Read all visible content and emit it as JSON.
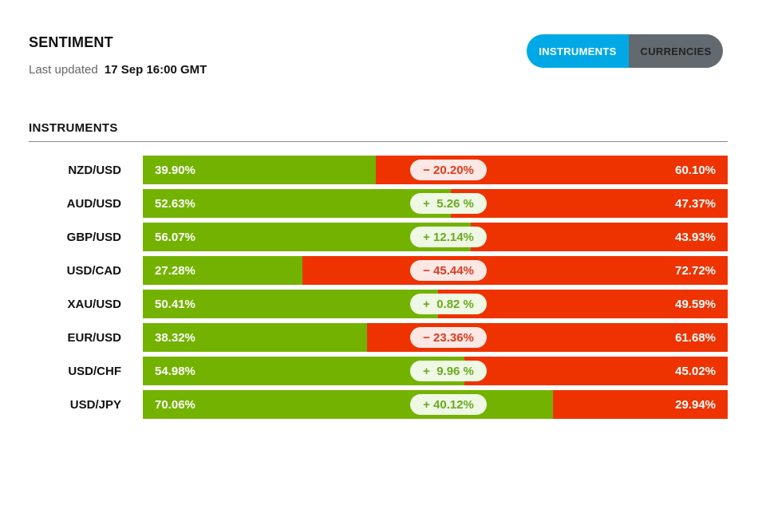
{
  "header": {
    "title": "SENTIMENT",
    "updated_label": "Last updated",
    "updated_time": "17 Sep 16:00 GMT"
  },
  "toggle": {
    "instruments_label": "INSTRUMENTS",
    "currencies_label": "CURRENCIES",
    "active": "INSTRUMENTS"
  },
  "section": {
    "label": "INSTRUMENTS"
  },
  "colors": {
    "long": "#73b300",
    "short": "#ee3300",
    "accent": "#00a9e6",
    "inactive": "#626a70"
  },
  "instruments": [
    {
      "symbol": "NZD/USD",
      "long": 39.9,
      "long_label": "39.90%",
      "short_label": "60.10%",
      "change": "− 20.20%",
      "dir": "neg"
    },
    {
      "symbol": "AUD/USD",
      "long": 52.63,
      "long_label": "52.63%",
      "short_label": "47.37%",
      "change": "+  5.26 %",
      "dir": "pos"
    },
    {
      "symbol": "GBP/USD",
      "long": 56.07,
      "long_label": "56.07%",
      "short_label": "43.93%",
      "change": "+ 12.14%",
      "dir": "pos"
    },
    {
      "symbol": "USD/CAD",
      "long": 27.28,
      "long_label": "27.28%",
      "short_label": "72.72%",
      "change": "− 45.44%",
      "dir": "neg"
    },
    {
      "symbol": "XAU/USD",
      "long": 50.41,
      "long_label": "50.41%",
      "short_label": "49.59%",
      "change": "+  0.82 %",
      "dir": "pos"
    },
    {
      "symbol": "EUR/USD",
      "long": 38.32,
      "long_label": "38.32%",
      "short_label": "61.68%",
      "change": "− 23.36%",
      "dir": "neg"
    },
    {
      "symbol": "USD/CHF",
      "long": 54.98,
      "long_label": "54.98%",
      "short_label": "45.02%",
      "change": "+  9.96 %",
      "dir": "pos"
    },
    {
      "symbol": "USD/JPY",
      "long": 70.06,
      "long_label": "70.06%",
      "short_label": "29.94%",
      "change": "+ 40.12%",
      "dir": "pos"
    }
  ]
}
